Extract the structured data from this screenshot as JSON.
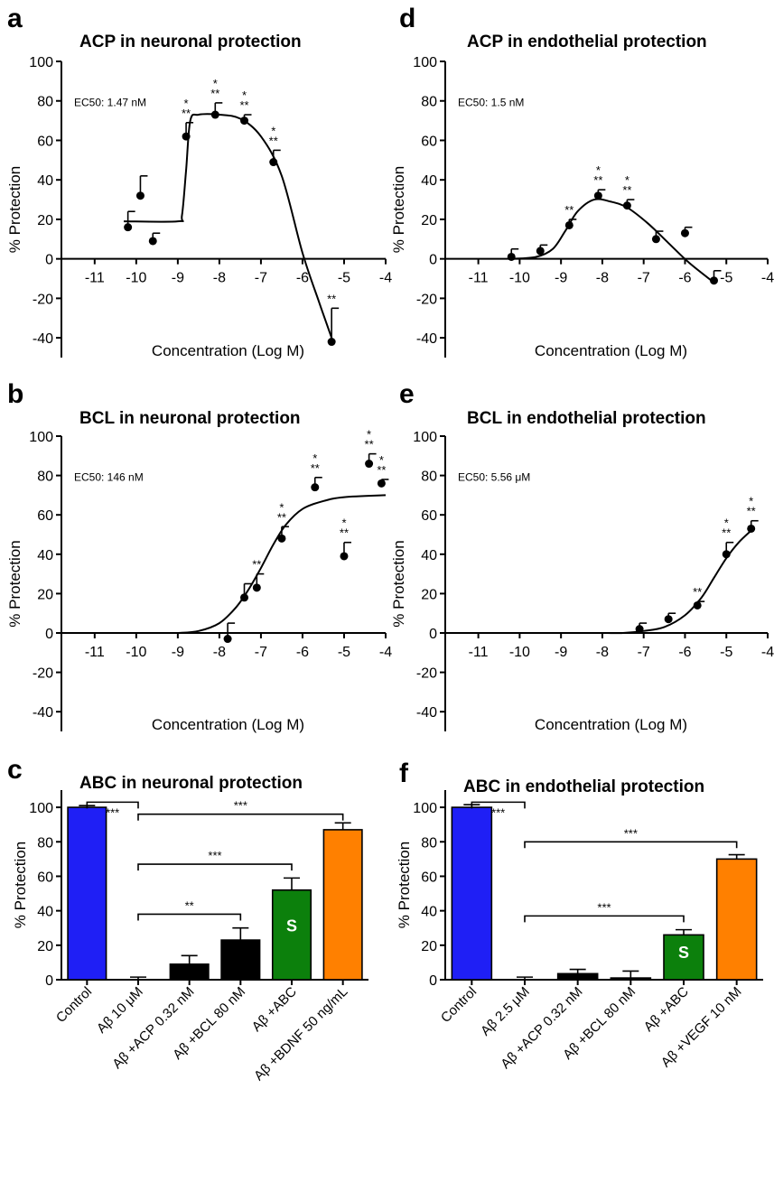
{
  "chart_data": [
    {
      "id": "a",
      "panel": "a",
      "type": "scatter",
      "title": "ACP in neuronal protection",
      "xlabel": "Concentration (Log M)",
      "ylabel": "% Protection",
      "annotation": "EC50: 1.47 nM",
      "xlim": [
        -11.8,
        -4
      ],
      "ylim": [
        -50,
        100
      ],
      "xticks": [
        -11,
        -10,
        -9,
        -8,
        -7,
        -6,
        -5,
        -4
      ],
      "yticks": [
        -40,
        -20,
        0,
        20,
        40,
        60,
        80,
        100
      ],
      "points": [
        {
          "x": -10.2,
          "y": 16,
          "err": 8,
          "sig": ""
        },
        {
          "x": -9.9,
          "y": 32,
          "err": 10,
          "sig": ""
        },
        {
          "x": -9.6,
          "y": 9,
          "err": 4,
          "sig": ""
        },
        {
          "x": -8.8,
          "y": 62,
          "err": 7,
          "sig": "* **"
        },
        {
          "x": -8.1,
          "y": 73,
          "err": 6,
          "sig": "* **"
        },
        {
          "x": -7.4,
          "y": 70,
          "err": 3,
          "sig": "* **"
        },
        {
          "x": -6.7,
          "y": 49,
          "err": 6,
          "sig": "* **"
        },
        {
          "x": -5.3,
          "y": -42,
          "err": 17,
          "sig": "**"
        }
      ],
      "curve": [
        [
          -10.3,
          19
        ],
        [
          -9.0,
          19
        ],
        [
          -8.9,
          22
        ],
        [
          -8.8,
          45
        ],
        [
          -8.7,
          70
        ],
        [
          -8.5,
          73
        ],
        [
          -8.0,
          73
        ],
        [
          -7.5,
          71
        ],
        [
          -7.0,
          62
        ],
        [
          -6.5,
          42
        ],
        [
          -6.0,
          3
        ],
        [
          -5.6,
          -22
        ],
        [
          -5.3,
          -40
        ]
      ]
    },
    {
      "id": "d",
      "panel": "d",
      "type": "scatter",
      "title": "ACP in endothelial protection",
      "xlabel": "Concentration (Log M)",
      "ylabel": "% Protection",
      "annotation": "EC50: 1.5 nM",
      "xlim": [
        -11.8,
        -4
      ],
      "ylim": [
        -50,
        100
      ],
      "xticks": [
        -11,
        -10,
        -9,
        -8,
        -7,
        -6,
        -5,
        -4
      ],
      "yticks": [
        -40,
        -20,
        0,
        20,
        40,
        60,
        80,
        100
      ],
      "points": [
        {
          "x": -10.2,
          "y": 1,
          "err": 4,
          "sig": ""
        },
        {
          "x": -9.5,
          "y": 4,
          "err": 3,
          "sig": ""
        },
        {
          "x": -8.8,
          "y": 17,
          "err": 3,
          "sig": "**"
        },
        {
          "x": -8.1,
          "y": 32,
          "err": 3,
          "sig": "* **"
        },
        {
          "x": -7.4,
          "y": 27,
          "err": 3,
          "sig": "* **"
        },
        {
          "x": -6.7,
          "y": 10,
          "err": 4,
          "sig": ""
        },
        {
          "x": -6.0,
          "y": 13,
          "err": 3,
          "sig": ""
        },
        {
          "x": -5.3,
          "y": -11,
          "err": 5,
          "sig": ""
        }
      ],
      "curve": [
        [
          -10.2,
          0
        ],
        [
          -9.6,
          1
        ],
        [
          -9.2,
          5
        ],
        [
          -8.9,
          14
        ],
        [
          -8.6,
          24
        ],
        [
          -8.2,
          30
        ],
        [
          -7.8,
          29
        ],
        [
          -7.4,
          26
        ],
        [
          -6.9,
          18
        ],
        [
          -6.4,
          8
        ],
        [
          -5.9,
          -2
        ],
        [
          -5.3,
          -12
        ]
      ]
    },
    {
      "id": "b",
      "panel": "b",
      "type": "scatter",
      "title": "BCL in neuronal protection",
      "xlabel": "Concentration (Log M)",
      "ylabel": "% Protection",
      "annotation": "EC50: 146 nM",
      "xlim": [
        -11.8,
        -4
      ],
      "ylim": [
        -50,
        100
      ],
      "xticks": [
        -11,
        -10,
        -9,
        -8,
        -7,
        -6,
        -5,
        -4
      ],
      "yticks": [
        -40,
        -20,
        0,
        20,
        40,
        60,
        80,
        100
      ],
      "points": [
        {
          "x": -7.8,
          "y": -3,
          "err": 8,
          "sig": ""
        },
        {
          "x": -7.4,
          "y": 18,
          "err": 7,
          "sig": ""
        },
        {
          "x": -7.1,
          "y": 23,
          "err": 7,
          "sig": "**"
        },
        {
          "x": -6.5,
          "y": 48,
          "err": 6,
          "sig": "* **"
        },
        {
          "x": -5.7,
          "y": 74,
          "err": 5,
          "sig": "* **"
        },
        {
          "x": -5.0,
          "y": 39,
          "err": 7,
          "sig": "* **"
        },
        {
          "x": -4.4,
          "y": 86,
          "err": 5,
          "sig": "* **"
        },
        {
          "x": -4.1,
          "y": 76,
          "err": 2,
          "sig": "* **"
        }
      ],
      "curve": [
        [
          -9.0,
          0
        ],
        [
          -8.5,
          1
        ],
        [
          -8.0,
          5
        ],
        [
          -7.6,
          13
        ],
        [
          -7.3,
          22
        ],
        [
          -7.0,
          33
        ],
        [
          -6.7,
          45
        ],
        [
          -6.4,
          55
        ],
        [
          -6.0,
          63
        ],
        [
          -5.5,
          67
        ],
        [
          -5.0,
          69
        ],
        [
          -4.0,
          70
        ]
      ]
    },
    {
      "id": "e",
      "panel": "e",
      "type": "scatter",
      "title": "BCL in endothelial protection",
      "xlabel": "Concentration (Log M)",
      "ylabel": "% Protection",
      "annotation": "EC50: 5.56 μM",
      "xlim": [
        -11.8,
        -4
      ],
      "ylim": [
        -50,
        100
      ],
      "xticks": [
        -11,
        -10,
        -9,
        -8,
        -7,
        -6,
        -5,
        -4
      ],
      "yticks": [
        -40,
        -20,
        0,
        20,
        40,
        60,
        80,
        100
      ],
      "points": [
        {
          "x": -7.1,
          "y": 2,
          "err": 3,
          "sig": ""
        },
        {
          "x": -6.4,
          "y": 7,
          "err": 3,
          "sig": ""
        },
        {
          "x": -5.7,
          "y": 14,
          "err": 2,
          "sig": "**"
        },
        {
          "x": -5.0,
          "y": 40,
          "err": 6,
          "sig": "* **"
        },
        {
          "x": -4.4,
          "y": 53,
          "err": 4,
          "sig": "* **"
        }
      ],
      "curve": [
        [
          -8.0,
          0
        ],
        [
          -7.5,
          0
        ],
        [
          -7.0,
          1
        ],
        [
          -6.5,
          3
        ],
        [
          -6.0,
          9
        ],
        [
          -5.6,
          18
        ],
        [
          -5.3,
          28
        ],
        [
          -5.0,
          38
        ],
        [
          -4.7,
          46
        ],
        [
          -4.4,
          52
        ]
      ]
    },
    {
      "id": "c",
      "panel": "c",
      "type": "bar",
      "title": "ABC in neuronal protection",
      "ylabel": "% Protection",
      "ylim": [
        0,
        110
      ],
      "yticks": [
        0,
        20,
        40,
        60,
        80,
        100
      ],
      "categories": [
        "Control",
        "Aβ 10 μM",
        "Aβ +ACP 0.32 nM",
        "Aβ +BCL 80 nM",
        "Aβ +ABC",
        "Aβ +BDNF 50 ng/mL"
      ],
      "values": [
        100,
        0,
        9,
        23,
        52,
        87
      ],
      "errors": [
        1,
        1.5,
        5,
        7,
        7,
        4
      ],
      "colors": [
        "#1f1ff5",
        "#ffffff",
        "#000000",
        "#000000",
        "#0c800c",
        "#ff8000"
      ],
      "bar_text": [
        "",
        "",
        "",
        "",
        "S",
        ""
      ],
      "brackets": [
        {
          "from": 0,
          "to": 1,
          "y": 103,
          "label": "***",
          "type": "pair"
        },
        {
          "from": 1,
          "to": 5,
          "y": 96,
          "label": "***"
        },
        {
          "from": 1,
          "to": 4,
          "y": 67,
          "label": "***"
        },
        {
          "from": 1,
          "to": 3,
          "y": 38,
          "label": "**"
        }
      ]
    },
    {
      "id": "f",
      "panel": "f",
      "type": "bar",
      "title": "ABC in endothelial protection",
      "ylabel": "% Protection",
      "ylim": [
        0,
        110
      ],
      "yticks": [
        0,
        20,
        40,
        60,
        80,
        100
      ],
      "categories": [
        "Control",
        "Aβ 2.5 μM",
        "Aβ +ACP 0.32 nM",
        "Aβ +BCL 80 nM",
        "Aβ +ABC",
        "Aβ +VEGF 10 nM"
      ],
      "values": [
        100,
        0,
        3.5,
        1,
        26,
        70
      ],
      "errors": [
        1.5,
        1.5,
        2.5,
        4,
        3,
        2.5
      ],
      "colors": [
        "#1f1ff5",
        "#ffffff",
        "#000000",
        "#000000",
        "#0c800c",
        "#ff8000"
      ],
      "bar_text": [
        "",
        "",
        "",
        "",
        "S",
        ""
      ],
      "brackets": [
        {
          "from": 0,
          "to": 1,
          "y": 103,
          "label": "***",
          "type": "pair"
        },
        {
          "from": 1,
          "to": 5,
          "y": 80,
          "label": "***"
        },
        {
          "from": 1,
          "to": 4,
          "y": 37,
          "label": "***"
        }
      ]
    }
  ]
}
